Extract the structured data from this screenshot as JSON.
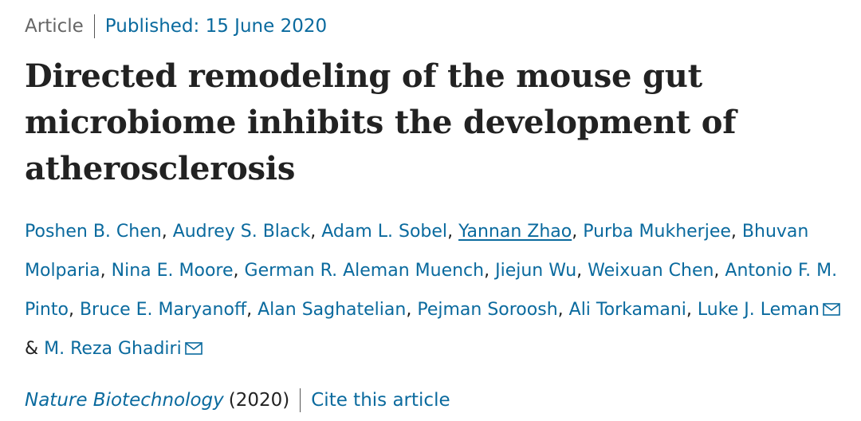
{
  "header": {
    "article_type": "Article",
    "published": "Published: 15 June 2020"
  },
  "title": "Directed remodeling of the mouse gut microbiome inhibits the development of atherosclerosis",
  "authors": [
    {
      "name": "Poshen B. Chen",
      "sep": ", "
    },
    {
      "name": "Audrey S. Black",
      "sep": ", "
    },
    {
      "name": "Adam L. Sobel",
      "sep": ", "
    },
    {
      "name": "Yannan Zhao",
      "sep": ", "
    },
    {
      "name": "Purba Mukherjee",
      "sep": ", "
    },
    {
      "name": "Bhuvan Molparia",
      "sep": ", "
    },
    {
      "name": "Nina E. Moore",
      "sep": ", "
    },
    {
      "name": "German R. Aleman Muench",
      "sep": ", "
    },
    {
      "name": "Jiejun Wu",
      "sep": ", "
    },
    {
      "name": "Weixuan Chen",
      "sep": ", "
    },
    {
      "name": "Antonio F. M. Pinto",
      "sep": ", "
    },
    {
      "name": "Bruce E. Maryanoff",
      "sep": ", "
    },
    {
      "name": "Alan Saghatelian",
      "sep": ", "
    },
    {
      "name": "Pejman Soroosh",
      "sep": ", "
    },
    {
      "name": "Ali Torkamani",
      "sep": ", "
    },
    {
      "name": "Luke J. Leman",
      "sep": " & "
    },
    {
      "name": "M. Reza Ghadiri",
      "sep": ""
    }
  ],
  "icons": {
    "corresponding_author": "mail-icon"
  },
  "footer": {
    "journal": "Nature Biotechnology",
    "year": "(2020)",
    "cite": "Cite this article"
  }
}
